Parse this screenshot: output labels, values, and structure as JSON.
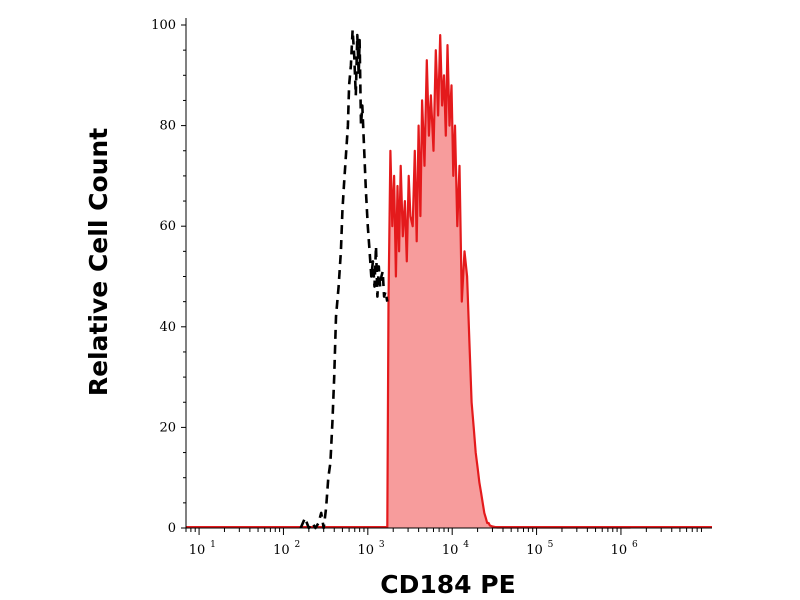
{
  "chart_data": {
    "type": "area",
    "xlabel": "CD184 PE",
    "ylabel": "Relative Cell Count",
    "xscale": "log",
    "xlim": [
      7,
      12000000
    ],
    "ylim": [
      0,
      100
    ],
    "grid": false,
    "yticks": [
      {
        "value": 0,
        "label": "0"
      },
      {
        "value": 20,
        "label": "20"
      },
      {
        "value": 40,
        "label": "40"
      },
      {
        "value": 60,
        "label": "60"
      },
      {
        "value": 80,
        "label": "80"
      },
      {
        "value": 100,
        "label": "100"
      }
    ],
    "xticks": [
      {
        "value": 10,
        "base": "10",
        "exp": "1"
      },
      {
        "value": 100,
        "base": "10",
        "exp": "2"
      },
      {
        "value": 1000,
        "base": "10",
        "exp": "3"
      },
      {
        "value": 10000,
        "base": "10",
        "exp": "4"
      },
      {
        "value": 100000,
        "base": "10",
        "exp": "5"
      },
      {
        "value": 1000000,
        "base": "10",
        "exp": "6"
      }
    ],
    "series": [
      {
        "style": "dashed",
        "color": "#000000",
        "fill": false,
        "x": [
          160,
          180,
          200,
          220,
          240,
          260,
          280,
          300,
          320,
          340,
          360,
          380,
          400,
          420,
          450,
          480,
          500,
          520,
          550,
          580,
          600,
          630,
          660,
          690,
          720,
          750,
          780,
          800,
          830,
          860,
          900,
          950,
          1000,
          1050,
          1100,
          1150,
          1200,
          1250,
          1300,
          1350,
          1400,
          1450,
          1500,
          1560,
          1620,
          1700
        ],
        "y": [
          0,
          2,
          0,
          1,
          0,
          1,
          3,
          0,
          4,
          10,
          13,
          21,
          30,
          42,
          48,
          55,
          63,
          68,
          74,
          80,
          88,
          92,
          99,
          94,
          86,
          98,
          90,
          97,
          80,
          84,
          76,
          67,
          60,
          55,
          50,
          53,
          48,
          56,
          46,
          52,
          48,
          50,
          51,
          46,
          47,
          45
        ]
      },
      {
        "style": "solid",
        "color": "#e41a1c",
        "fill": true,
        "fill_color": "#f79c9c",
        "x": [
          1700,
          1760,
          1850,
          1950,
          2050,
          2150,
          2250,
          2350,
          2450,
          2600,
          2750,
          2900,
          3050,
          3200,
          3400,
          3600,
          3800,
          4000,
          4200,
          4400,
          4700,
          5000,
          5300,
          5600,
          6000,
          6400,
          6800,
          7200,
          7600,
          8000,
          8400,
          8800,
          9300,
          9800,
          10300,
          10800,
          11500,
          12200,
          13000,
          14000,
          15000,
          16000,
          17000,
          18000,
          19000,
          20000,
          21000,
          22000,
          23000,
          24000,
          25000,
          26000,
          27000,
          28000,
          30000,
          32000,
          34000,
          36000,
          38000,
          40000,
          1000000,
          1300000
        ],
        "y": [
          0,
          45,
          75,
          60,
          70,
          50,
          68,
          55,
          72,
          58,
          65,
          53,
          70,
          62,
          60,
          75,
          57,
          80,
          62,
          85,
          72,
          93,
          78,
          86,
          75,
          95,
          82,
          98,
          84,
          90,
          78,
          96,
          80,
          88,
          70,
          80,
          60,
          72,
          45,
          55,
          50,
          37,
          25,
          20,
          15,
          12,
          9,
          7,
          5,
          3,
          2,
          1,
          1,
          0.5,
          0.3,
          0.2,
          0.1,
          0.1,
          0.1,
          0.1,
          0.1,
          0.1
        ]
      }
    ]
  }
}
